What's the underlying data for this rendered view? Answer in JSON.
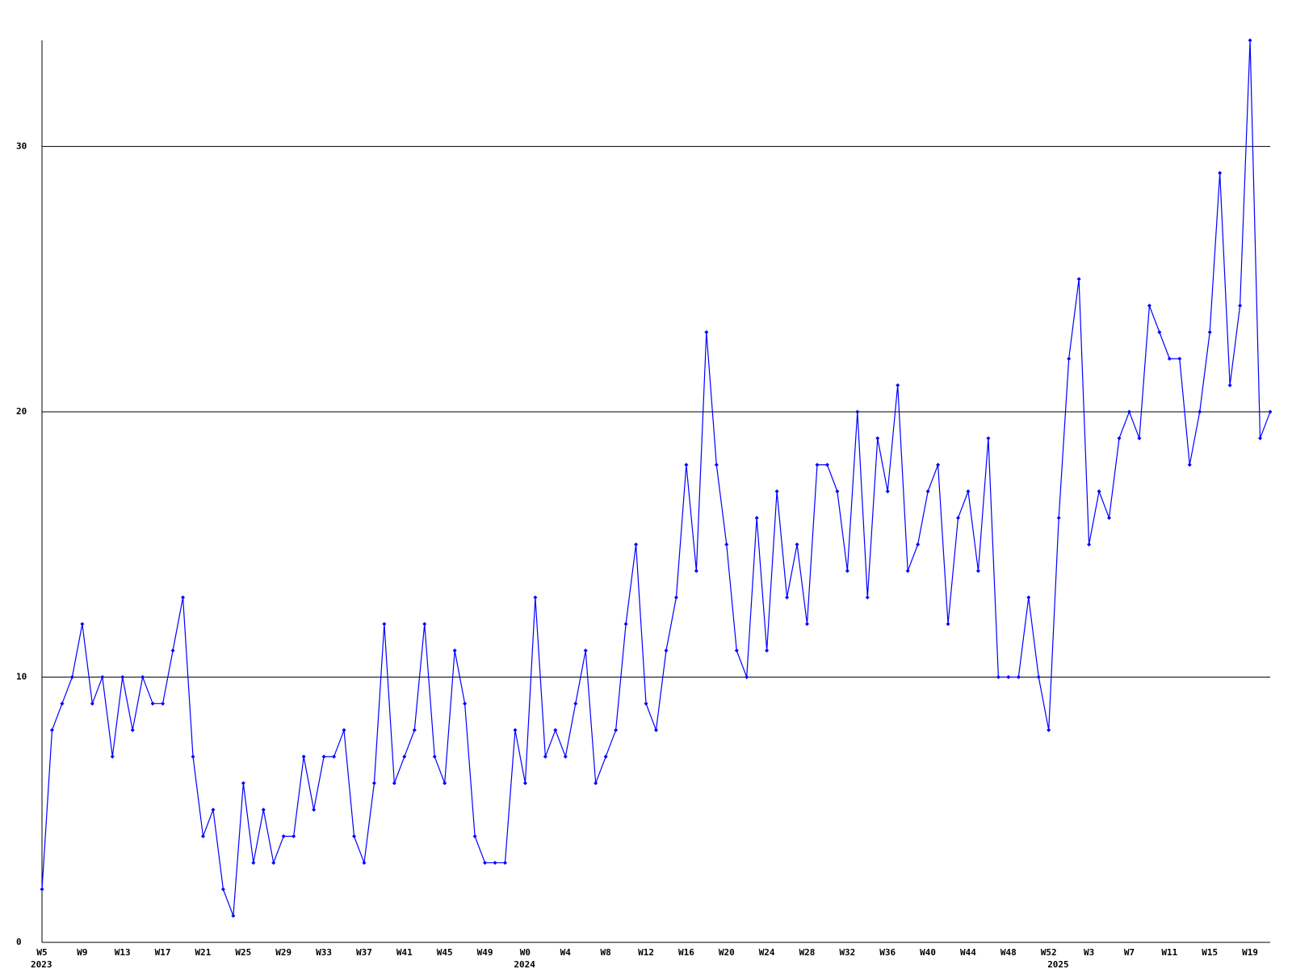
{
  "chart_data": {
    "type": "line",
    "categories": [
      "W5",
      null,
      null,
      null,
      "W9",
      null,
      null,
      null,
      "W13",
      null,
      null,
      null,
      "W17",
      null,
      null,
      null,
      "W21",
      null,
      null,
      null,
      "W25",
      null,
      null,
      null,
      "W29",
      null,
      null,
      null,
      "W33",
      null,
      null,
      null,
      "W37",
      null,
      null,
      null,
      "W41",
      null,
      null,
      null,
      "W45",
      null,
      null,
      null,
      "W49",
      null,
      null,
      null,
      "W0",
      null,
      null,
      null,
      "W4",
      null,
      null,
      null,
      "W8",
      null,
      null,
      null,
      "W12",
      null,
      null,
      null,
      "W16",
      null,
      null,
      null,
      "W20",
      null,
      null,
      null,
      "W24",
      null,
      null,
      null,
      "W28",
      null,
      null,
      null,
      "W32",
      null,
      null,
      null,
      "W36",
      null,
      null,
      null,
      "W40",
      null,
      null,
      null,
      "W44",
      null,
      null,
      null,
      "W48",
      null,
      null,
      null,
      "W52",
      null,
      null,
      null,
      "W3",
      null,
      null,
      null,
      "W7",
      null,
      null,
      null,
      "W11",
      null,
      null,
      null,
      "W15",
      null,
      null,
      null,
      "W19",
      null,
      null
    ],
    "years": [
      "2023",
      null,
      null,
      null,
      null,
      null,
      null,
      null,
      null,
      null,
      null,
      null,
      null,
      null,
      null,
      null,
      null,
      null,
      null,
      null,
      null,
      null,
      null,
      null,
      null,
      null,
      null,
      null,
      null,
      null,
      null,
      null,
      null,
      null,
      null,
      null,
      null,
      null,
      null,
      null,
      null,
      null,
      null,
      null,
      null,
      null,
      null,
      null,
      "2024",
      null,
      null,
      null,
      null,
      null,
      null,
      null,
      null,
      null,
      null,
      null,
      null,
      null,
      null,
      null,
      null,
      null,
      null,
      null,
      null,
      null,
      null,
      null,
      null,
      null,
      null,
      null,
      null,
      null,
      null,
      null,
      null,
      null,
      null,
      null,
      null,
      null,
      null,
      null,
      null,
      null,
      null,
      null,
      null,
      null,
      null,
      null,
      null,
      null,
      null,
      null,
      null,
      "2025",
      null,
      null,
      null,
      null,
      null,
      null,
      null,
      null,
      null,
      null,
      null,
      null,
      null,
      null,
      null,
      null,
      null,
      null,
      null,
      null
    ],
    "series": [
      {
        "color": "#0000ff",
        "values": [
          2,
          8,
          9,
          10,
          12,
          9,
          10,
          7,
          10,
          8,
          10,
          9,
          9,
          11,
          13,
          7,
          4,
          5,
          2,
          1,
          6,
          3,
          5,
          3,
          4,
          4,
          7,
          5,
          7,
          7,
          8,
          4,
          3,
          6,
          12,
          6,
          7,
          8,
          12,
          7,
          6,
          11,
          9,
          4,
          3,
          3,
          3,
          8,
          6,
          13,
          7,
          8,
          7,
          9,
          11,
          6,
          7,
          8,
          12,
          15,
          9,
          8,
          11,
          13,
          18,
          14,
          23,
          18,
          15,
          11,
          10,
          16,
          11,
          17,
          13,
          15,
          12,
          18,
          18,
          17,
          14,
          20,
          13,
          19,
          17,
          21,
          14,
          15,
          17,
          18,
          12,
          16,
          17,
          14,
          19,
          10,
          10,
          10,
          13,
          10,
          8,
          16,
          22,
          25,
          15,
          17,
          16,
          19,
          20,
          19,
          24,
          23,
          22,
          22,
          18,
          20,
          23,
          29,
          21,
          24,
          34,
          19,
          20
        ]
      }
    ],
    "ylim": [
      0,
      34
    ],
    "yticks": [
      0,
      10,
      20,
      30
    ],
    "grid": true
  }
}
